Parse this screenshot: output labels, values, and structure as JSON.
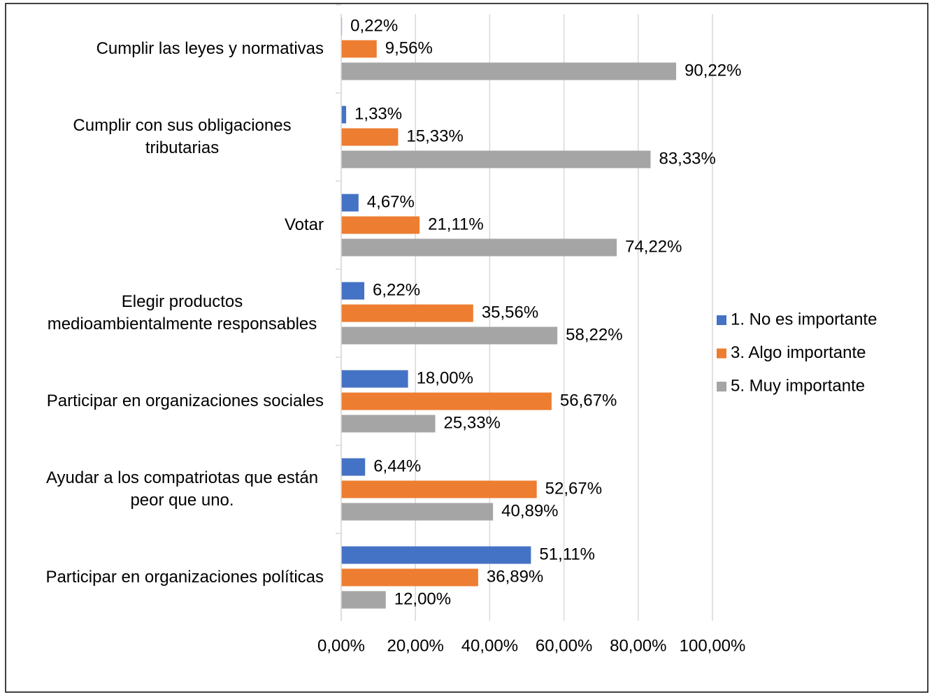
{
  "chart_data": {
    "type": "bar",
    "orientation": "horizontal",
    "categories": [
      "Cumplir las leyes y normativas",
      "Cumplir con sus obligaciones tributarias",
      "Votar",
      "Elegir productos medioambientalmente responsables",
      "Participar en organizaciones sociales",
      "Ayudar a los compatriotas que están peor que uno.",
      "Participar en organizaciones políticas"
    ],
    "series": [
      {
        "name": "1. No es importante",
        "color": "#4472c4",
        "values": [
          0.22,
          1.33,
          4.67,
          6.22,
          18.0,
          6.44,
          51.11
        ],
        "value_labels": [
          "0,22%",
          "1,33%",
          "4,67%",
          "6,22%",
          "18,00%",
          "6,44%",
          "51,11%"
        ]
      },
      {
        "name": "3. Algo importante",
        "color": "#ed7d31",
        "values": [
          9.56,
          15.33,
          21.11,
          35.56,
          56.67,
          52.67,
          36.89
        ],
        "value_labels": [
          "9,56%",
          "15,33%",
          "21,11%",
          "35,56%",
          "56,67%",
          "52,67%",
          "36,89%"
        ]
      },
      {
        "name": "5. Muy importante",
        "color": "#a5a5a5",
        "values": [
          90.22,
          83.33,
          74.22,
          58.22,
          25.33,
          40.89,
          12.0
        ],
        "value_labels": [
          "90,22%",
          "83,33%",
          "74,22%",
          "58,22%",
          "25,33%",
          "40,89%",
          "12,00%"
        ]
      }
    ],
    "xlim": [
      0,
      100
    ],
    "xticks": [
      {
        "value": 0,
        "label": "0,00%"
      },
      {
        "value": 20,
        "label": "20,00%"
      },
      {
        "value": 40,
        "label": "40,00%"
      },
      {
        "value": 60,
        "label": "60,00%"
      },
      {
        "value": 80,
        "label": "80,00%"
      },
      {
        "value": 100,
        "label": "100,00%"
      }
    ],
    "grid": true,
    "legend": "right"
  }
}
